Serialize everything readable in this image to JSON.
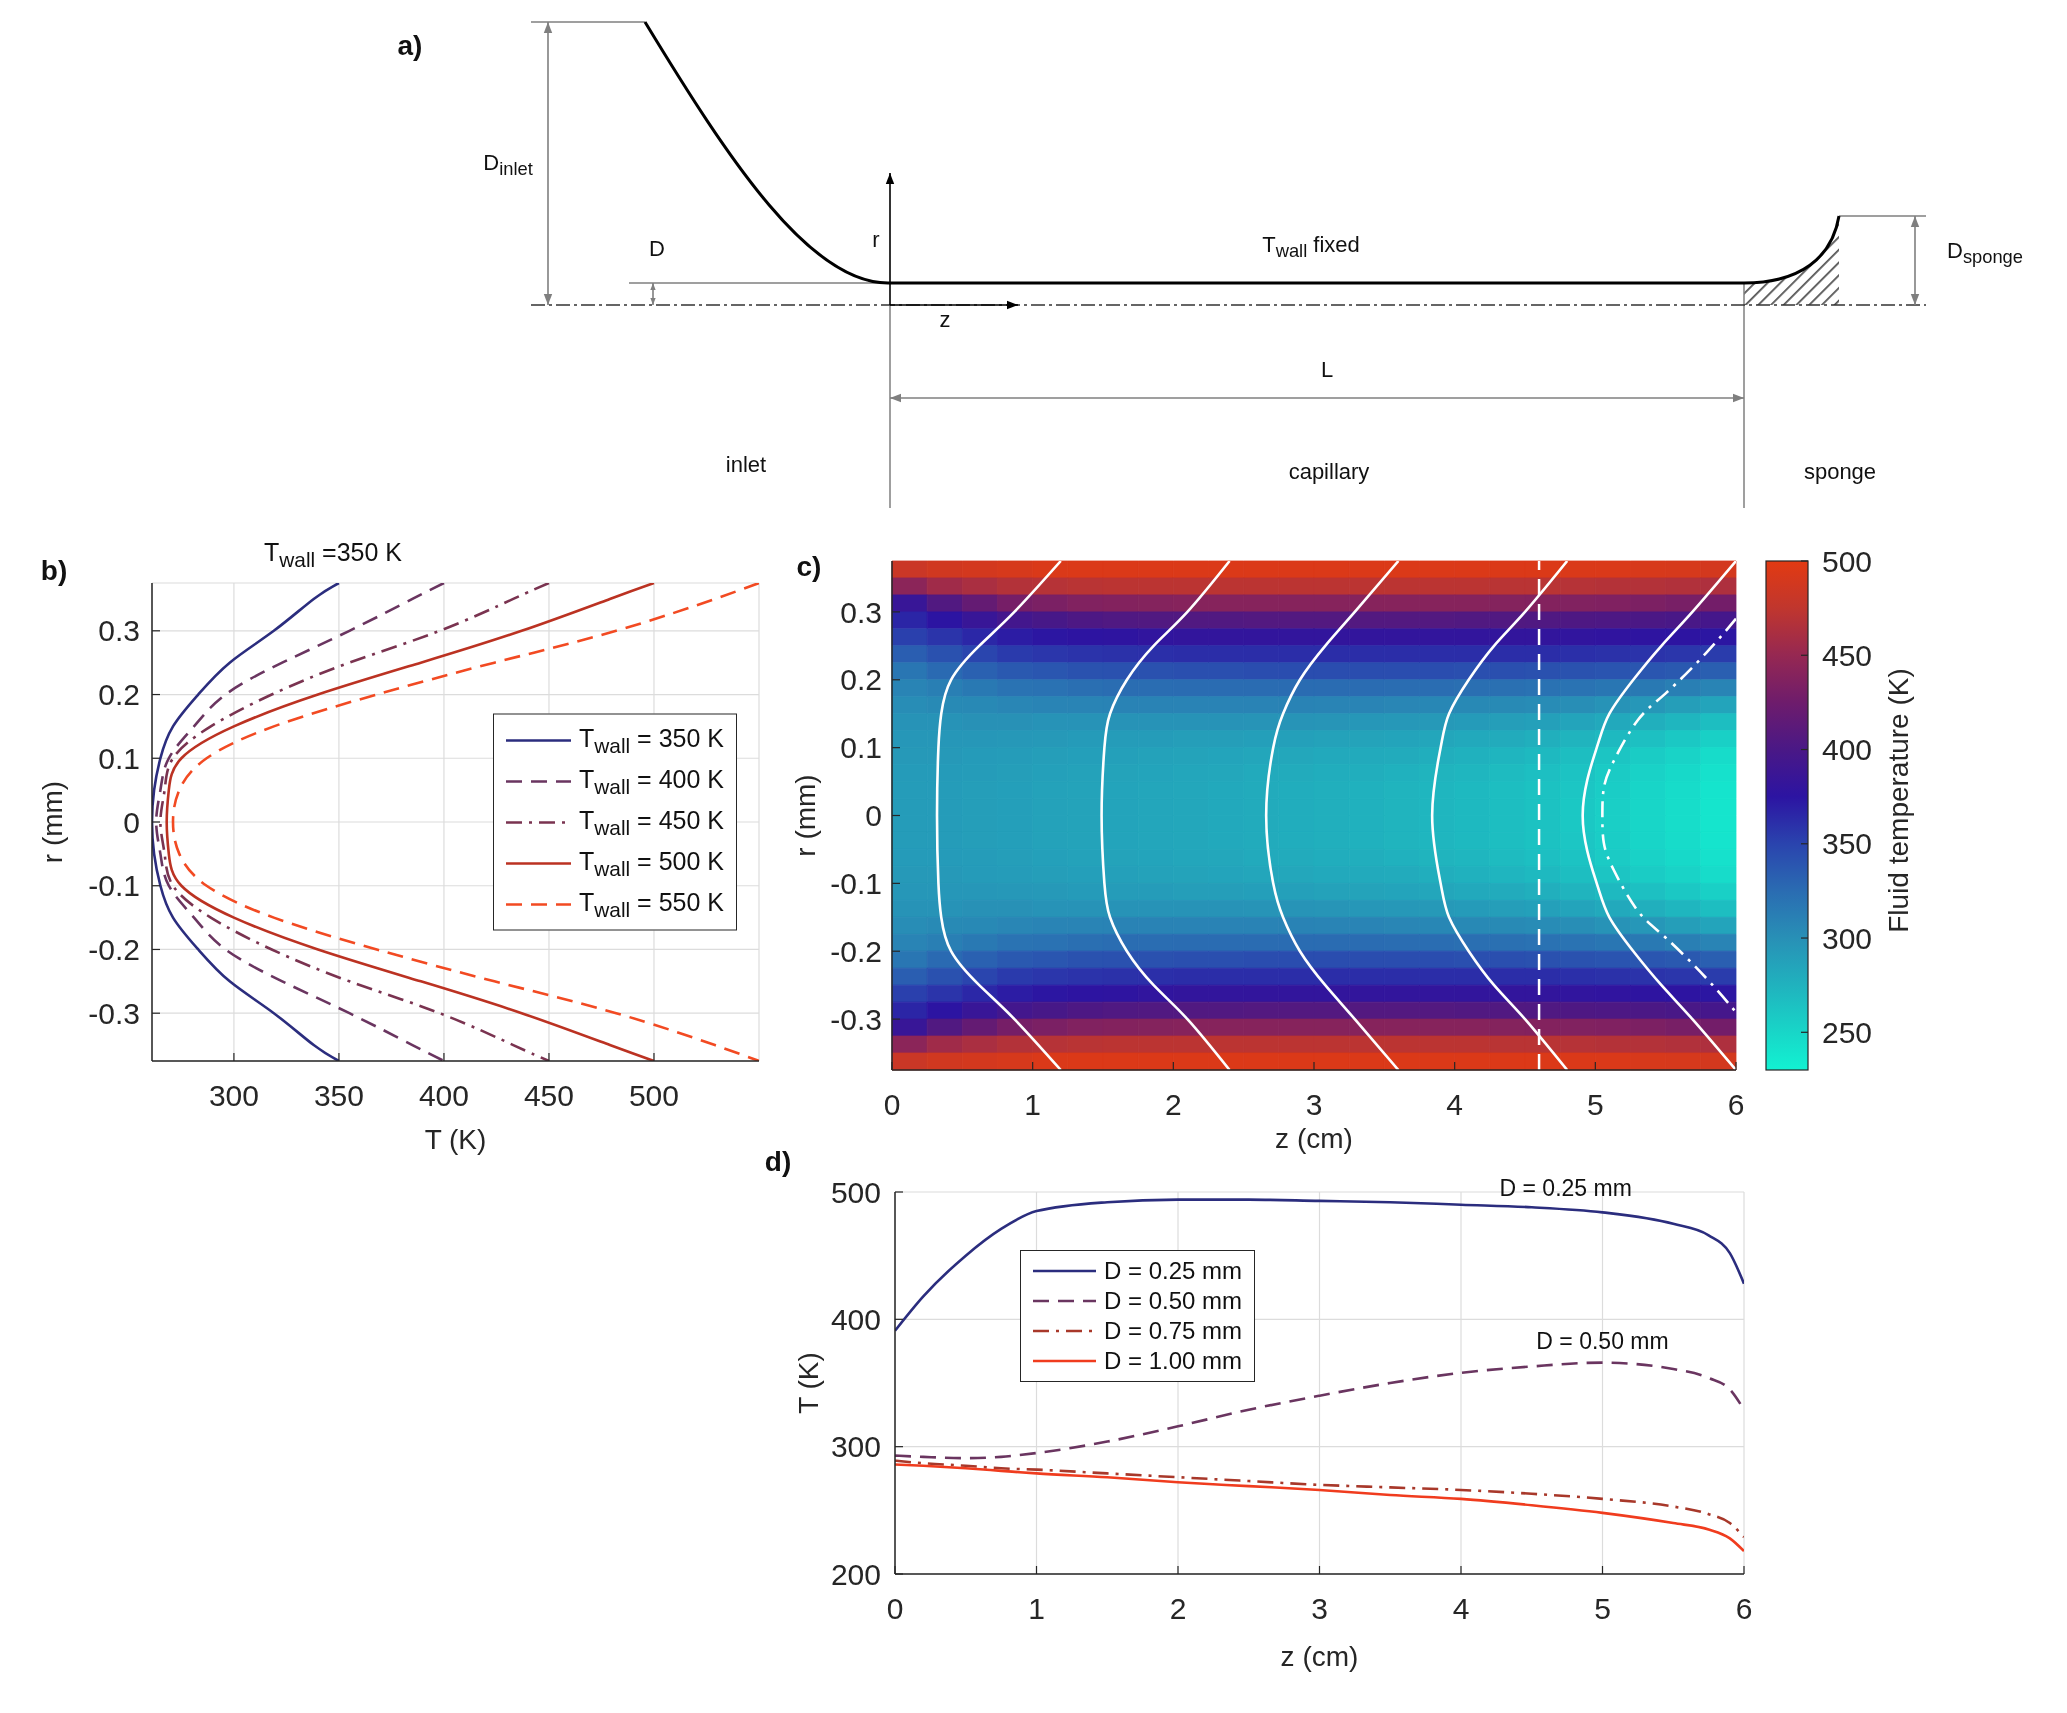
{
  "chart_data": [
    {
      "type": "other",
      "annotations": [
        "a)",
        "D$_{inlet}$",
        "D",
        "r",
        "z",
        "T$_{wall}$ fixed",
        "D$_{sponge}$",
        "L",
        "inlet",
        "capillary",
        "sponge"
      ]
    },
    {
      "type": "line",
      "title": "T$_{wall}$ =350 K",
      "xlabel": "T (K)",
      "ylabel": "r (mm)",
      "annotations": [
        "b)"
      ],
      "xlim": [
        261,
        550
      ],
      "xticks": [
        300,
        350,
        400,
        450,
        500
      ],
      "ylim": [
        -0.375,
        0.375
      ],
      "yticks": [
        -0.3,
        -0.2,
        -0.1,
        0,
        0.1,
        0.2,
        0.3
      ],
      "grid": true,
      "legend": "right",
      "series": [
        {
          "name": "T$_{wall}$ = 350 K",
          "color": "#2b2d7e",
          "line_style": "solid",
          "x": [
            350,
            338,
            319,
            298,
            283,
            271,
            265,
            262,
            261,
            262,
            265,
            271,
            283,
            298,
            319,
            338,
            350
          ],
          "values": [
            0.375,
            0.35,
            0.3,
            0.25,
            0.2,
            0.15,
            0.1,
            0.05,
            0,
            -0.05,
            -0.1,
            -0.15,
            -0.2,
            -0.25,
            -0.3,
            -0.35,
            -0.375
          ]
        },
        {
          "name": "T$_{wall}$ = 400 K",
          "color": "#6a3560",
          "line_style": "dashed",
          "x": [
            400,
            385,
            355,
            323,
            296,
            281,
            269,
            265,
            263,
            265,
            269,
            281,
            296,
            323,
            355,
            385,
            400
          ],
          "values": [
            0.375,
            0.35,
            0.3,
            0.25,
            0.2,
            0.15,
            0.1,
            0.05,
            0,
            -0.05,
            -0.1,
            -0.15,
            -0.2,
            -0.25,
            -0.3,
            -0.35,
            -0.375
          ]
        },
        {
          "name": "T$_{wall}$ = 450 K",
          "color": "#7a3350",
          "line_style": "dashdot",
          "x": [
            450,
            433,
            398,
            355,
            318,
            289,
            271,
            267,
            265,
            267,
            271,
            289,
            318,
            355,
            398,
            433,
            450
          ],
          "values": [
            0.375,
            0.35,
            0.3,
            0.25,
            0.2,
            0.15,
            0.1,
            0.05,
            0,
            -0.05,
            -0.1,
            -0.15,
            -0.2,
            -0.25,
            -0.3,
            -0.35,
            -0.375
          ]
        },
        {
          "name": "T$_{wall}$ = 500 K",
          "color": "#bb3222",
          "line_style": "solid",
          "x": [
            500,
            479,
            437,
            389,
            340,
            300,
            275,
            269,
            268,
            269,
            275,
            300,
            340,
            389,
            437,
            479,
            500
          ],
          "values": [
            0.375,
            0.35,
            0.3,
            0.25,
            0.2,
            0.15,
            0.1,
            0.05,
            0,
            -0.05,
            -0.1,
            -0.15,
            -0.2,
            -0.25,
            -0.3,
            -0.35,
            -0.375
          ]
        },
        {
          "name": "T$_{wall}$ = 550 K",
          "color": "#f24a22",
          "line_style": "dashed",
          "x": [
            550,
            529,
            482,
            424,
            368,
            319,
            287,
            274,
            271,
            274,
            287,
            319,
            368,
            424,
            482,
            529,
            550
          ],
          "values": [
            0.375,
            0.35,
            0.3,
            0.25,
            0.2,
            0.15,
            0.1,
            0.05,
            0,
            -0.05,
            -0.1,
            -0.15,
            -0.2,
            -0.25,
            -0.3,
            -0.35,
            -0.375
          ]
        }
      ]
    },
    {
      "type": "heatmap",
      "clabel": "Fluid temperature (K)",
      "tick_labels": false,
      "clim": [
        230,
        500
      ],
      "cticks": [
        250,
        300,
        350,
        400,
        450,
        500
      ],
      "categories": [
        null,
        null,
        null,
        null,
        null,
        null,
        null,
        null,
        null,
        null,
        null,
        null,
        null,
        null,
        null,
        null,
        null,
        null,
        null,
        null,
        null,
        null,
        null,
        null
      ],
      "y_categories": [
        null,
        null,
        null,
        null,
        null,
        null,
        null,
        null,
        null,
        null,
        null,
        null,
        null,
        null,
        null,
        null,
        null,
        null,
        null,
        null,
        null,
        null,
        null,
        null,
        null,
        null,
        null,
        null,
        null,
        null
      ],
      "cells": [
        [
          482,
          487,
          489,
          491,
          494,
          495,
          495,
          495,
          495,
          495,
          495,
          495,
          495,
          495,
          495,
          495,
          495,
          495,
          495,
          494,
          494,
          492,
          491,
          489
        ],
        [
          443,
          456,
          462,
          467,
          469,
          471,
          472,
          472,
          472,
          472,
          472,
          472,
          472,
          472,
          472,
          472,
          472,
          471,
          471,
          469,
          468,
          467,
          466,
          464
        ],
        [
          385,
          405,
          418,
          430,
          433,
          437,
          438,
          439,
          440,
          440,
          440,
          440,
          440,
          440,
          440,
          440,
          440,
          439,
          438,
          437,
          436,
          434,
          431,
          428
        ],
        [
          366,
          375,
          385,
          394,
          398,
          402,
          404,
          405,
          405,
          405,
          406,
          406,
          406,
          406,
          406,
          406,
          405,
          405,
          404,
          403,
          402,
          401,
          399,
          396
        ],
        [
          352,
          358,
          365,
          371,
          374,
          376,
          377,
          379,
          380,
          380,
          380,
          380,
          380,
          380,
          380,
          380,
          380,
          380,
          380,
          379,
          378,
          377,
          376,
          374
        ],
        [
          334,
          342,
          349,
          355,
          357,
          359,
          360,
          361,
          362,
          362,
          362,
          362,
          362,
          362,
          362,
          362,
          362,
          362,
          362,
          361,
          360,
          359,
          357,
          354
        ],
        [
          318,
          326,
          332,
          337,
          339,
          341,
          342,
          342,
          343,
          343,
          344,
          344,
          344,
          344,
          344,
          344,
          343,
          343,
          342,
          341,
          340,
          339,
          337,
          333
        ],
        [
          308,
          312,
          316,
          320,
          321,
          323,
          324,
          324,
          325,
          325,
          325,
          325,
          325,
          325,
          324,
          324,
          323,
          322,
          321,
          320,
          318,
          316,
          312,
          308
        ],
        [
          302,
          304,
          305,
          307,
          308,
          308,
          309,
          309,
          309,
          309,
          309,
          309,
          308,
          308,
          307,
          306,
          305,
          304,
          303,
          301,
          298,
          295,
          290,
          285
        ],
        [
          298,
          298,
          299,
          299,
          298,
          298,
          298,
          298,
          298,
          298,
          297,
          297,
          296,
          295,
          294,
          293,
          292,
          290,
          288,
          285,
          282,
          277,
          272,
          267
        ],
        [
          295,
          295,
          295,
          294,
          293,
          292,
          291,
          291,
          290,
          290,
          289,
          288,
          287,
          286,
          285,
          284,
          282,
          280,
          277,
          274,
          270,
          265,
          260,
          254
        ],
        [
          293,
          293,
          292,
          291,
          290,
          289,
          288,
          287,
          286,
          285,
          284,
          283,
          282,
          281,
          280,
          278,
          276,
          273,
          270,
          267,
          262,
          257,
          252,
          246
        ],
        [
          292,
          292,
          291,
          290,
          288,
          287,
          286,
          285,
          284,
          283,
          281,
          280,
          279,
          278,
          276,
          274,
          272,
          269,
          266,
          263,
          258,
          253,
          248,
          242
        ],
        [
          291,
          291,
          290,
          289,
          287,
          286,
          285,
          284,
          283,
          282,
          280,
          279,
          277,
          276,
          274,
          272,
          270,
          267,
          264,
          261,
          256,
          251,
          246,
          240
        ],
        [
          291,
          291,
          290,
          289,
          287,
          286,
          285,
          284,
          283,
          282,
          280,
          279,
          277,
          276,
          274,
          272,
          270,
          267,
          264,
          260,
          255,
          250,
          245,
          239
        ],
        [
          291,
          291,
          290,
          289,
          287,
          286,
          285,
          284,
          283,
          282,
          280,
          279,
          277,
          276,
          274,
          272,
          270,
          267,
          264,
          260,
          255,
          250,
          245,
          239
        ],
        [
          291,
          291,
          290,
          289,
          287,
          286,
          285,
          284,
          283,
          282,
          280,
          279,
          277,
          276,
          274,
          272,
          270,
          267,
          264,
          261,
          256,
          251,
          246,
          240
        ],
        [
          292,
          292,
          291,
          290,
          288,
          287,
          286,
          285,
          284,
          283,
          281,
          280,
          279,
          278,
          276,
          274,
          272,
          269,
          266,
          263,
          258,
          253,
          248,
          242
        ],
        [
          293,
          293,
          292,
          291,
          290,
          289,
          288,
          287,
          286,
          285,
          284,
          283,
          282,
          281,
          280,
          278,
          276,
          273,
          270,
          267,
          262,
          257,
          252,
          246
        ],
        [
          295,
          295,
          295,
          294,
          293,
          292,
          291,
          291,
          290,
          290,
          289,
          288,
          287,
          286,
          285,
          284,
          282,
          280,
          277,
          274,
          270,
          265,
          260,
          254
        ],
        [
          298,
          298,
          299,
          299,
          298,
          298,
          298,
          298,
          298,
          298,
          297,
          297,
          296,
          295,
          294,
          293,
          292,
          290,
          288,
          285,
          282,
          277,
          272,
          267
        ],
        [
          302,
          304,
          305,
          307,
          308,
          308,
          309,
          309,
          309,
          309,
          309,
          309,
          308,
          308,
          307,
          306,
          305,
          304,
          303,
          301,
          298,
          295,
          290,
          285
        ],
        [
          308,
          312,
          316,
          320,
          321,
          323,
          324,
          324,
          325,
          325,
          325,
          325,
          325,
          325,
          324,
          324,
          323,
          322,
          321,
          320,
          318,
          316,
          312,
          308
        ],
        [
          318,
          326,
          332,
          337,
          339,
          341,
          342,
          342,
          343,
          343,
          344,
          344,
          344,
          344,
          344,
          344,
          343,
          343,
          342,
          341,
          340,
          339,
          337,
          333
        ],
        [
          334,
          342,
          349,
          355,
          357,
          359,
          360,
          361,
          362,
          362,
          362,
          362,
          362,
          362,
          362,
          362,
          362,
          362,
          362,
          361,
          360,
          359,
          357,
          354
        ],
        [
          352,
          358,
          365,
          371,
          374,
          376,
          377,
          379,
          380,
          380,
          380,
          380,
          380,
          380,
          380,
          380,
          380,
          380,
          380,
          379,
          378,
          377,
          376,
          374
        ],
        [
          366,
          375,
          385,
          394,
          398,
          402,
          404,
          405,
          405,
          405,
          406,
          406,
          406,
          406,
          406,
          406,
          405,
          405,
          404,
          403,
          402,
          401,
          399,
          396
        ],
        [
          385,
          405,
          418,
          430,
          433,
          437,
          438,
          439,
          440,
          440,
          440,
          440,
          440,
          440,
          440,
          440,
          440,
          439,
          438,
          437,
          436,
          434,
          431,
          428
        ],
        [
          443,
          456,
          462,
          467,
          469,
          471,
          472,
          472,
          472,
          472,
          472,
          472,
          472,
          472,
          472,
          472,
          472,
          471,
          471,
          469,
          468,
          467,
          466,
          464
        ],
        [
          482,
          487,
          489,
          491,
          494,
          495,
          495,
          495,
          495,
          495,
          495,
          495,
          495,
          495,
          495,
          495,
          495,
          495,
          495,
          494,
          494,
          492,
          491,
          489
        ]
      ]
    },
    {
      "type": "line",
      "xlabel": "z (cm)",
      "ylabel": "r (mm)",
      "annotations": [
        "c)"
      ],
      "xlim": [
        0,
        6
      ],
      "xticks": [
        0,
        1,
        2,
        3,
        4,
        5,
        6
      ],
      "ylim": [
        -0.375,
        0.375
      ],
      "yticks": [
        -0.3,
        -0.2,
        -0.1,
        0,
        0.1,
        0.2,
        0.3
      ],
      "series": [
        {
          "color": "#ffffff",
          "line_style": "solid",
          "x": [
            1.2,
            0.87,
            0.62,
            0.42,
            0.35,
            0.33,
            0.32,
            0.33,
            0.35,
            0.42,
            0.62,
            0.87,
            1.2
          ],
          "values": [
            0.375,
            0.3,
            0.25,
            0.2,
            0.15,
            0.1,
            0,
            -0.1,
            -0.15,
            -0.2,
            -0.25,
            -0.3,
            -0.375
          ]
        },
        {
          "color": "#ffffff",
          "line_style": "solid",
          "x": [
            2.4,
            2.1,
            1.86,
            1.67,
            1.55,
            1.51,
            1.49,
            1.51,
            1.55,
            1.67,
            1.86,
            2.1,
            2.4
          ],
          "values": [
            0.375,
            0.3,
            0.25,
            0.2,
            0.15,
            0.1,
            0,
            -0.1,
            -0.15,
            -0.2,
            -0.25,
            -0.3,
            -0.375
          ]
        },
        {
          "color": "#ffffff",
          "line_style": "solid",
          "x": [
            3.6,
            3.29,
            3.08,
            2.9,
            2.78,
            2.71,
            2.66,
            2.71,
            2.78,
            2.9,
            3.08,
            3.29,
            3.6
          ],
          "values": [
            0.375,
            0.3,
            0.25,
            0.2,
            0.15,
            0.1,
            0,
            -0.1,
            -0.15,
            -0.2,
            -0.25,
            -0.3,
            -0.375
          ]
        },
        {
          "color": "#ffffff",
          "line_style": "solid",
          "x": [
            4.8,
            4.5,
            4.28,
            4.1,
            3.96,
            3.9,
            3.84,
            3.9,
            3.96,
            4.1,
            4.28,
            4.5,
            4.8
          ],
          "values": [
            0.375,
            0.3,
            0.25,
            0.2,
            0.15,
            0.1,
            0,
            -0.1,
            -0.15,
            -0.2,
            -0.25,
            -0.3,
            -0.375
          ]
        },
        {
          "color": "#ffffff",
          "line_style": "solid",
          "x": [
            6,
            5.69,
            5.47,
            5.27,
            5.1,
            5.01,
            4.91,
            5.01,
            5.1,
            5.27,
            5.47,
            5.69,
            6
          ],
          "values": [
            0.375,
            0.3,
            0.25,
            0.2,
            0.15,
            0.1,
            0,
            -0.1,
            -0.15,
            -0.2,
            -0.25,
            -0.3,
            -0.375
          ]
        },
        {
          "color": "#ffffff",
          "line_style": "dashdot",
          "x": [
            6,
            5.79,
            5.5,
            5.3,
            5.13,
            5.06,
            5.05,
            5.06,
            5.13,
            5.3,
            5.5,
            5.79,
            6
          ],
          "values": [
            0.29,
            0.24,
            0.18,
            0.14,
            0.08,
            0.04,
            0,
            -0.04,
            -0.08,
            -0.14,
            -0.18,
            -0.24,
            -0.29
          ]
        }
      ],
      "ref_lines": [
        {
          "axis": "x",
          "value": 4.6,
          "color": "#ffffff",
          "line_style": "dashed"
        }
      ]
    },
    {
      "type": "line",
      "xlabel": "z (cm)",
      "ylabel": "T (K)",
      "annotations": [
        "d)",
        {
          "text": "D = 0.25 mm",
          "x": 4.74,
          "y": 486
        },
        {
          "text": "D = 0.50 mm",
          "x": 5,
          "y": 366
        }
      ],
      "xlim": [
        0,
        6
      ],
      "xticks": [
        0,
        1,
        2,
        3,
        4,
        5,
        6
      ],
      "ylim": [
        200,
        500
      ],
      "yticks": [
        200,
        300,
        400,
        500
      ],
      "grid": true,
      "legend": "top left",
      "x": [
        0,
        0.2,
        0.5,
        0.75,
        1,
        1.5,
        2,
        2.5,
        3,
        3.5,
        4,
        4.5,
        5,
        5.5,
        5.75,
        5.9,
        6
      ],
      "series": [
        {
          "name": "D = 0.25 mm",
          "color": "#2b2d7e",
          "line_style": "solid",
          "values": [
            391,
            418,
            450,
            471,
            485,
            492,
            494,
            494,
            493,
            492,
            490,
            488,
            484,
            475,
            466,
            452,
            428
          ]
        },
        {
          "name": "D = 0.50 mm",
          "color": "#6a3560",
          "line_style": "dashed",
          "values": [
            293,
            292,
            291,
            292,
            295,
            304,
            316,
            329,
            340,
            350,
            358,
            363,
            366,
            361,
            354,
            345,
            329
          ]
        },
        {
          "name": "D = 0.75 mm",
          "color": "#a8382a",
          "line_style": "dashdot",
          "values": [
            289,
            287,
            285,
            283,
            282,
            279,
            276,
            273,
            270,
            268,
            266,
            263,
            259,
            253,
            247,
            240,
            229
          ]
        },
        {
          "name": "D = 1.00 mm",
          "color": "#f03c1e",
          "line_style": "solid",
          "values": [
            286,
            285,
            283,
            281,
            279,
            276,
            272,
            269,
            266,
            262,
            259,
            254,
            248,
            240,
            235,
            228,
            218
          ]
        }
      ]
    }
  ]
}
